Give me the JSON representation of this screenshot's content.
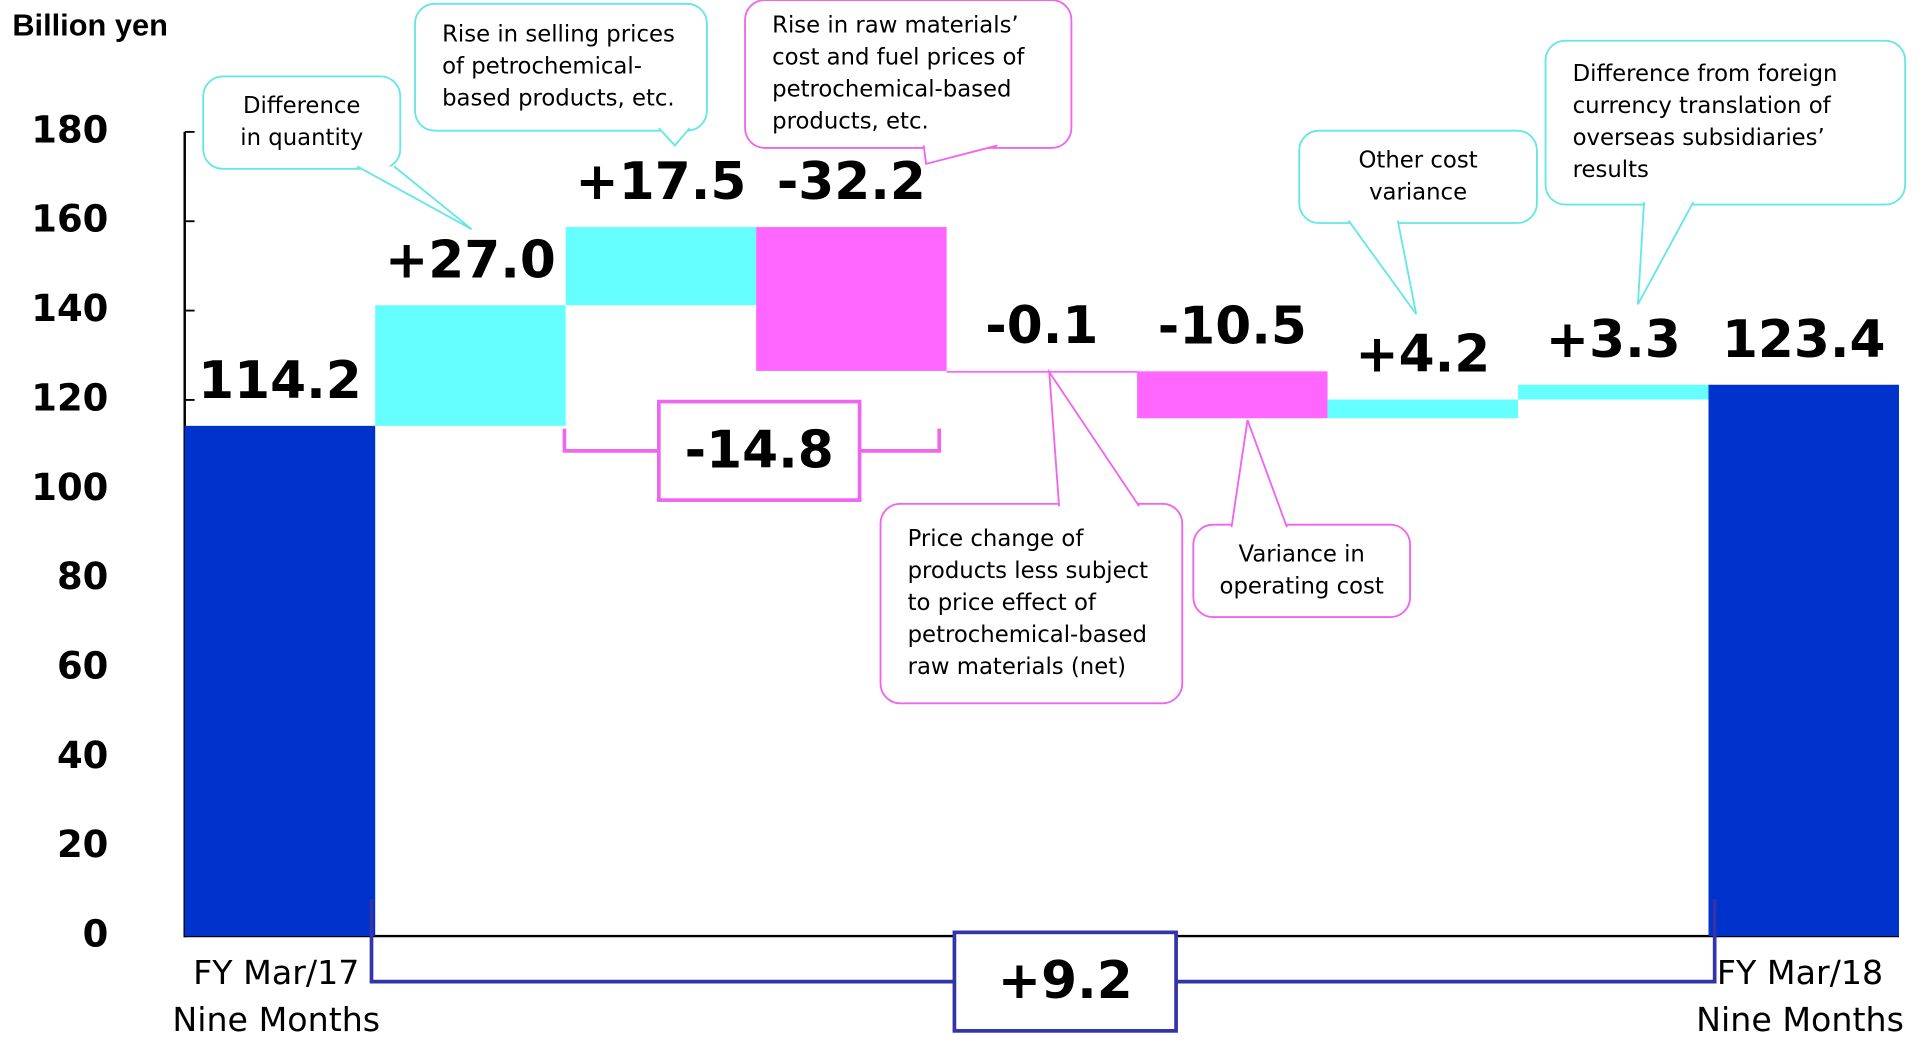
{
  "chart_data": {
    "type": "waterfall",
    "ylabel": "Billion yen",
    "categories": [
      "FY Mar/17 Nine Months",
      null,
      null,
      null,
      null,
      null,
      null,
      null,
      "FY Mar/18 Nine Months"
    ],
    "values": [
      114.2,
      27.0,
      17.5,
      -32.2,
      -0.1,
      -10.5,
      4.2,
      3.3,
      123.4
    ],
    "value_labels": [
      "114.2",
      "+27.0",
      "+17.5",
      "-32.2",
      "-0.1",
      "-10.5",
      "+4.2",
      "+3.3",
      "123.4"
    ],
    "measure": [
      "absolute",
      "relative",
      "relative",
      "relative",
      "relative",
      "relative",
      "relative",
      "relative",
      "total"
    ],
    "colors": {
      "total": "#0033cc",
      "increase": "#66ffff",
      "decrease": "#ff66ff"
    },
    "ylim": [
      0,
      180
    ],
    "yticks": [
      0,
      20,
      40,
      60,
      80,
      100,
      120,
      140,
      160,
      180
    ],
    "brackets": [
      {
        "value": -14.8,
        "label": "-14.8",
        "span": [
          2,
          3
        ],
        "color": "#ee66ee"
      },
      {
        "value": 9.2,
        "label": "+9.2",
        "span": [
          0,
          8
        ],
        "color": "#3333aa"
      }
    ],
    "callouts": [
      {
        "lines": [
          "Difference",
          "in quantity"
        ],
        "category": 1,
        "color": "#66e6e6"
      },
      {
        "lines": [
          "Rise  in selling prices",
          "of petrochemical-",
          "based products, etc."
        ],
        "category": 2,
        "color": "#66e6e6"
      },
      {
        "lines": [
          "Rise  in raw materials’",
          "cost and fuel prices of",
          "petrochemical-based",
          "products, etc."
        ],
        "category": 3,
        "color": "#ee66ee"
      },
      {
        "lines": [
          "Price change of",
          "products less subject",
          "to price effect of",
          "petrochemical-based",
          "raw materials (net)"
        ],
        "category": 4,
        "color": "#ee66ee"
      },
      {
        "lines": [
          "Variance in",
          "operating cost"
        ],
        "category": 5,
        "color": "#ee66ee"
      },
      {
        "lines": [
          "Other cost",
          "variance"
        ],
        "category": 6,
        "color": "#66e6e6"
      },
      {
        "lines": [
          "Difference from foreign",
          "currency  translation  of",
          "overseas subsidiaries’",
          "results"
        ],
        "category": 7,
        "color": "#66e6e6"
      }
    ]
  }
}
